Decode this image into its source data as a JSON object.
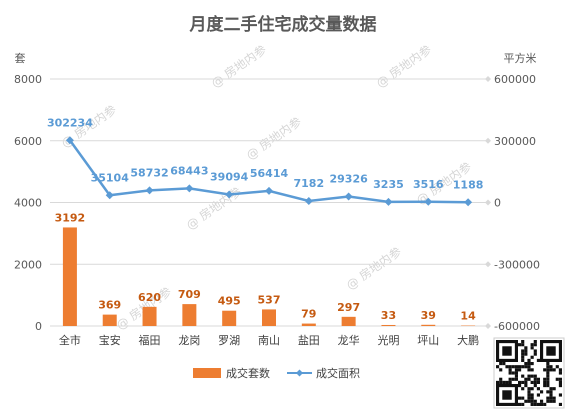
{
  "chart_data": {
    "type": "bar",
    "title": "月度二手住宅成交量数据",
    "left_axis_label": "套",
    "right_axis_label": "平方米",
    "categories": [
      "全市",
      "宝安",
      "福田",
      "龙岗",
      "罗湖",
      "南山",
      "盐田",
      "龙华",
      "光明",
      "坪山",
      "大鹏"
    ],
    "left_axis": {
      "ylim": [
        0,
        8000
      ],
      "ticks": [
        0,
        2000,
        4000,
        6000,
        8000
      ]
    },
    "right_axis": {
      "ylim": [
        -600000,
        600000
      ],
      "ticks": [
        -600000,
        -300000,
        0,
        300000,
        600000
      ]
    },
    "series": [
      {
        "name": "成交套数",
        "type": "bar",
        "axis": "left",
        "color": "#ed7d31",
        "values": [
          3192,
          369,
          620,
          709,
          495,
          537,
          79,
          297,
          33,
          39,
          14
        ]
      },
      {
        "name": "成交面积",
        "type": "line",
        "axis": "right",
        "color": "#5b9bd5",
        "values": [
          302234,
          35104,
          58732,
          68443,
          39094,
          56414,
          7182,
          29326,
          3235,
          3516,
          1188
        ]
      }
    ],
    "grid": true,
    "legend_position": "bottom",
    "watermark_text": "@ 房地内参"
  }
}
